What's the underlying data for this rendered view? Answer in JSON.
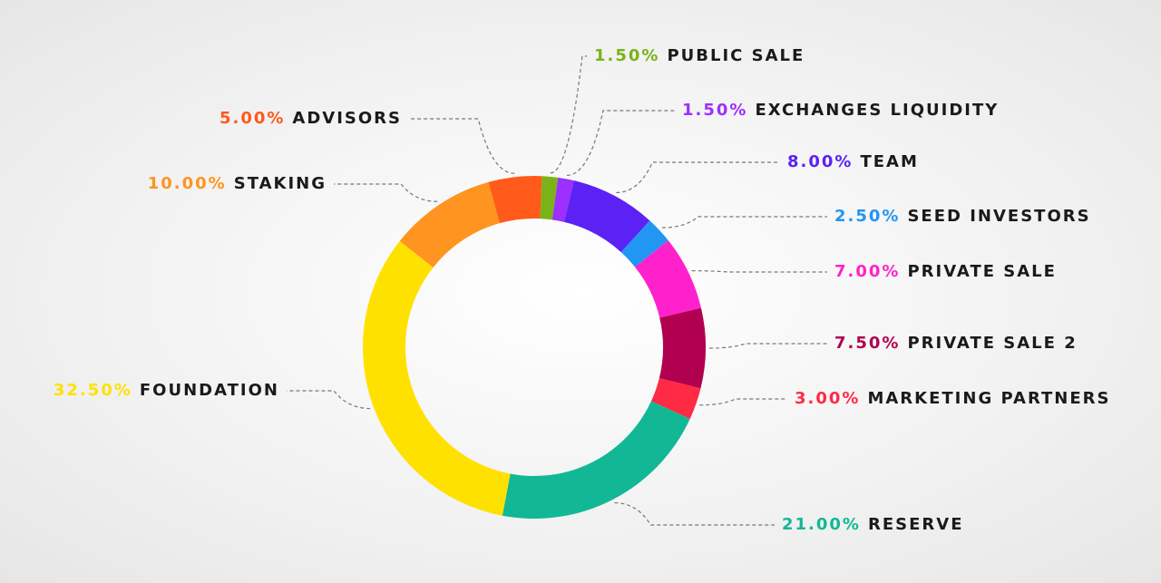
{
  "chart_data": {
    "type": "donut",
    "categories": [
      "PUBLIC SALE",
      "EXCHANGES LIQUIDITY",
      "TEAM",
      "SEED INVESTORS",
      "PRIVATE SALE",
      "PRIVATE SALE 2",
      "MARKETING PARTNERS",
      "RESERVE",
      "FOUNDATION",
      "STAKING",
      "ADVISORS"
    ],
    "values": [
      1.5,
      1.5,
      8,
      2.5,
      7,
      7.5,
      3,
      21,
      32.5,
      10,
      5
    ],
    "value_labels": [
      "1.50%",
      "1.50%",
      "8.00%",
      "2.50%",
      "7.00%",
      "7.50%",
      "3.00%",
      "21.00%",
      "32.50%",
      "10.00%",
      "5.00%"
    ],
    "colors": [
      "#7ab317",
      "#9b30ff",
      "#5b21f5",
      "#2196f3",
      "#ff22cc",
      "#b0004f",
      "#ff2a44",
      "#12b896",
      "#ffe100",
      "#ff9420",
      "#ff5a1a"
    ]
  }
}
